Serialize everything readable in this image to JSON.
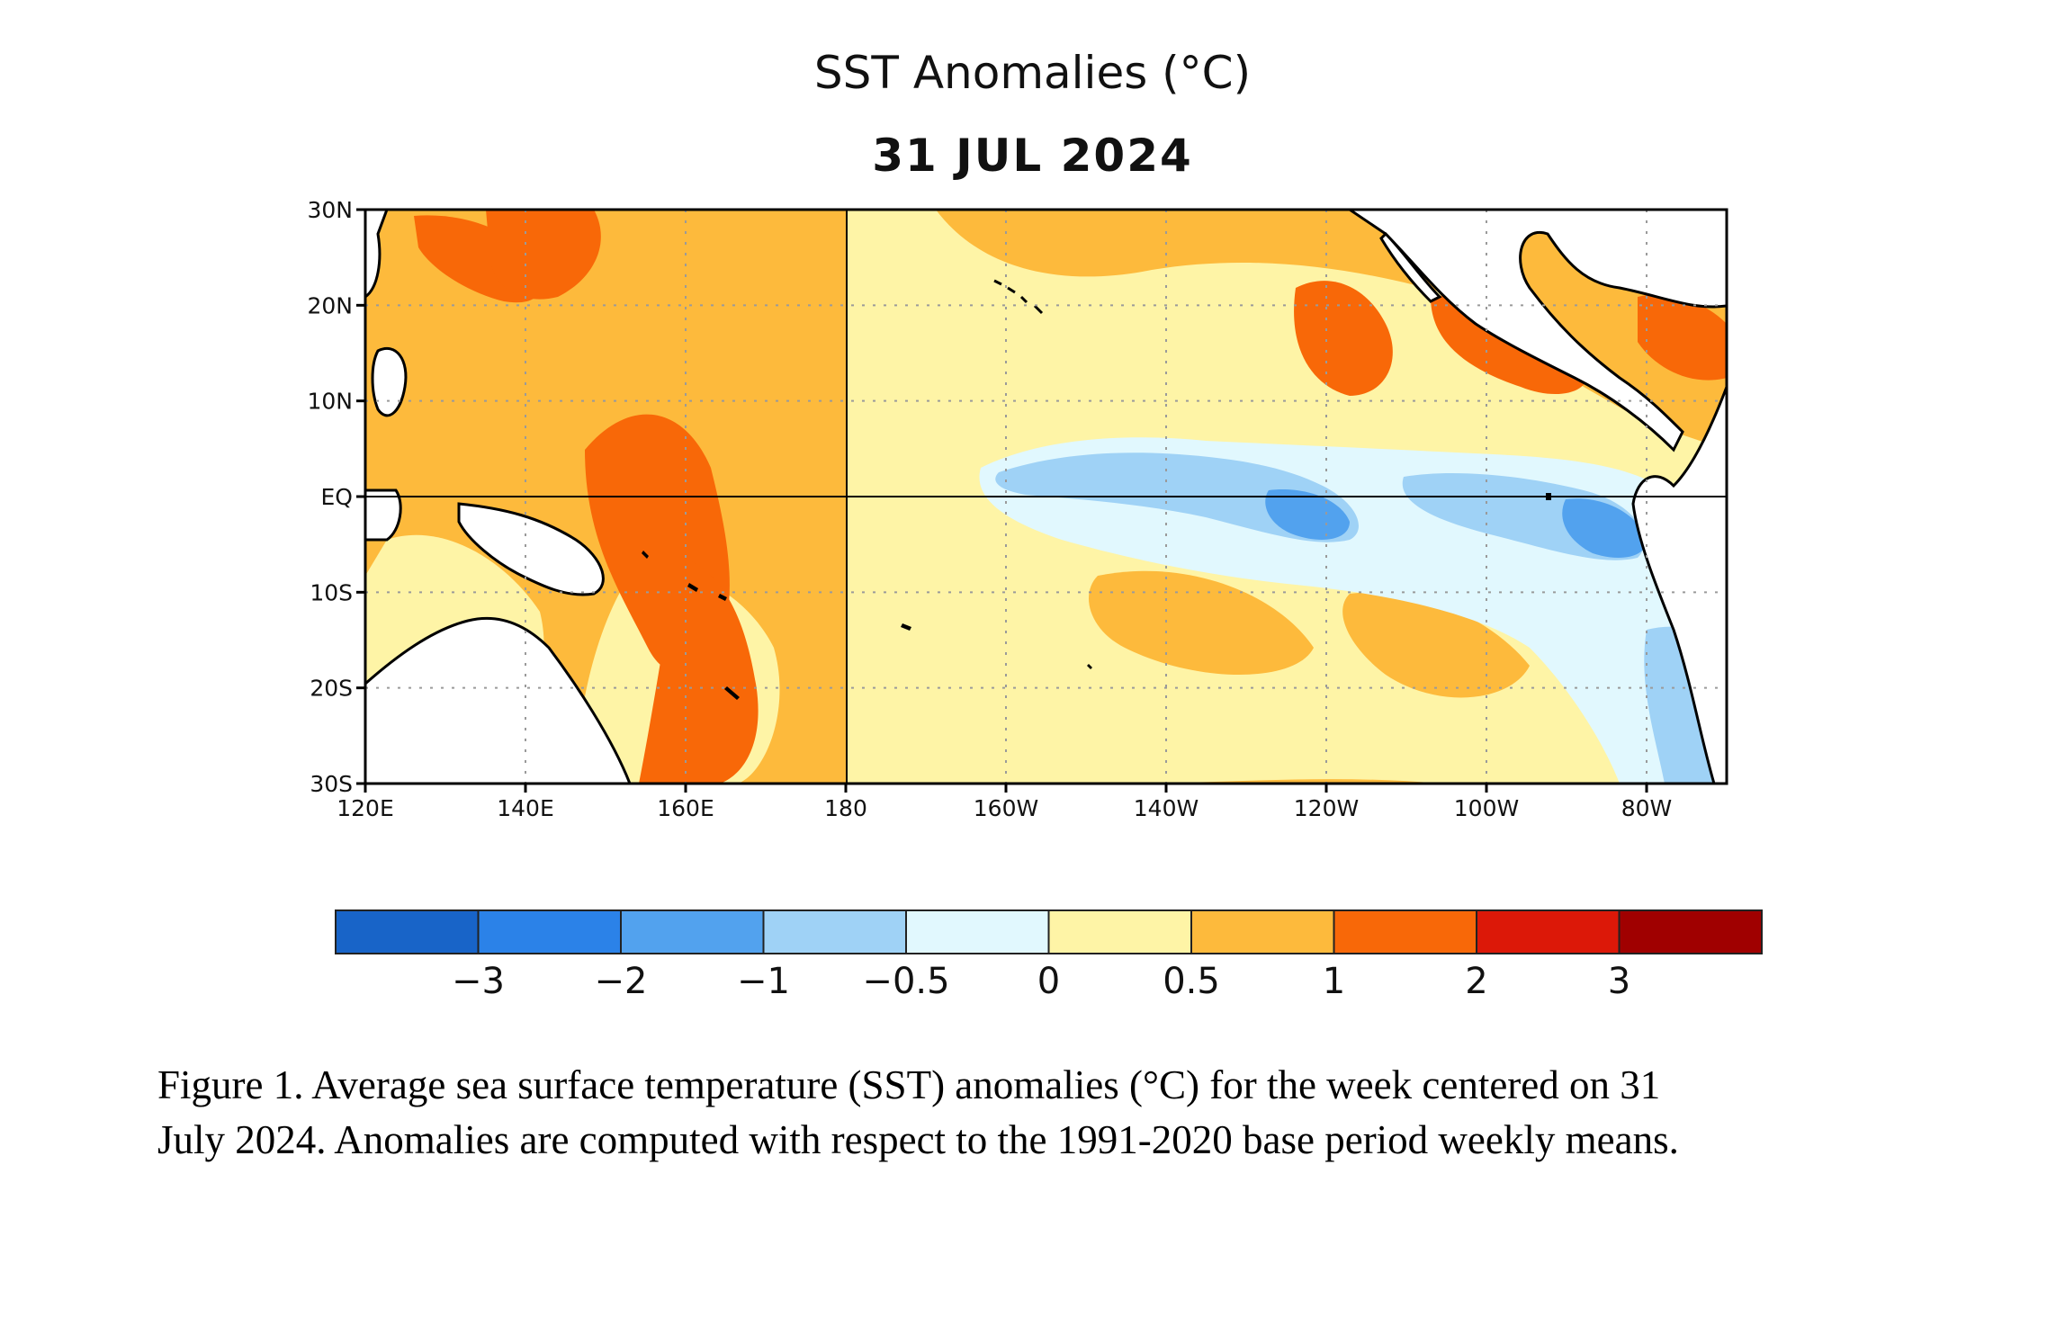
{
  "map": {
    "title": "SST Anomalies (°C)",
    "date": "31 JUL 2024",
    "lat_labels": [
      "30N",
      "20N",
      "10N",
      "EQ",
      "10S",
      "20S",
      "30S"
    ],
    "lon_labels": [
      "120E",
      "140E",
      "160E",
      "180",
      "160W",
      "140W",
      "120W",
      "100W",
      "80W"
    ],
    "lat_range": [
      -30,
      30
    ],
    "lon_range": [
      120,
      290
    ],
    "gridlines": "dotted",
    "land_color": "#ffffff",
    "colors": {
      "le_-3": "#1864c8",
      "-3_-2": "#2b82e8",
      "-2_-1": "#52a2ee",
      "-1_-0.5": "#9fd2f6",
      "-0.5_0": "#e1f8fe",
      "0_0.5": "#fef4a6",
      "0.5_1": "#fdba3c",
      "1_2": "#f86808",
      "2_3": "#dc1808",
      "ge_3": "#a00000"
    }
  },
  "colorbar": {
    "labels": [
      "−3",
      "−2",
      "−1",
      "−0.5",
      "0",
      "0.5",
      "1",
      "2",
      "3"
    ],
    "boundaries": [
      -3,
      -2,
      -1,
      -0.5,
      0,
      0.5,
      1,
      2,
      3
    ],
    "colors": [
      "#1864c8",
      "#2b82e8",
      "#52a2ee",
      "#9fd2f6",
      "#e1f8fe",
      "#fef4a6",
      "#fdba3c",
      "#f86808",
      "#dc1808",
      "#a00000"
    ]
  },
  "caption": {
    "line1": "Figure 1. Average sea surface temperature (SST) anomalies (°C) for the week centered on 31",
    "line2": "July 2024.  Anomalies are computed with respect to the 1991-2020 base period weekly means."
  }
}
